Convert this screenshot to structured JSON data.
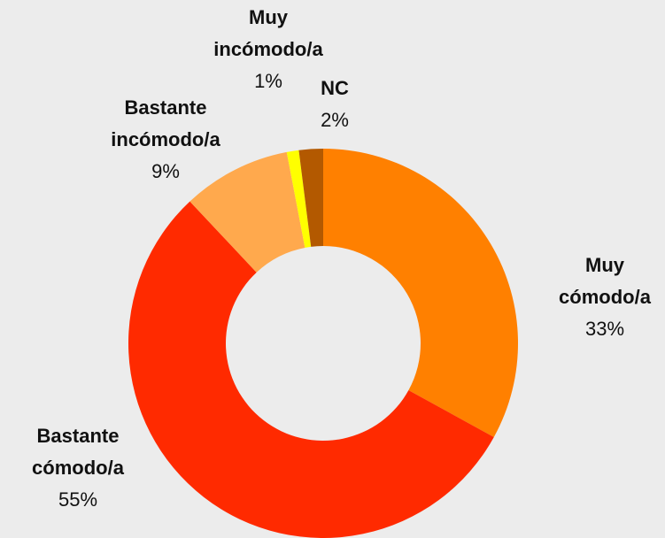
{
  "chart_data": {
    "type": "donut",
    "categories": [
      "Muy cómodo/a",
      "Bastante cómodo/a",
      "Bastante incómodo/a",
      "Muy incómodo/a",
      "NC"
    ],
    "values": [
      33,
      55,
      9,
      1,
      2
    ],
    "value_labels": [
      "33%",
      "55%",
      "9%",
      "1%",
      "2%"
    ],
    "colors": [
      "#ff8000",
      "#ff2a00",
      "#ffa94d",
      "#ffff00",
      "#b35900"
    ]
  }
}
